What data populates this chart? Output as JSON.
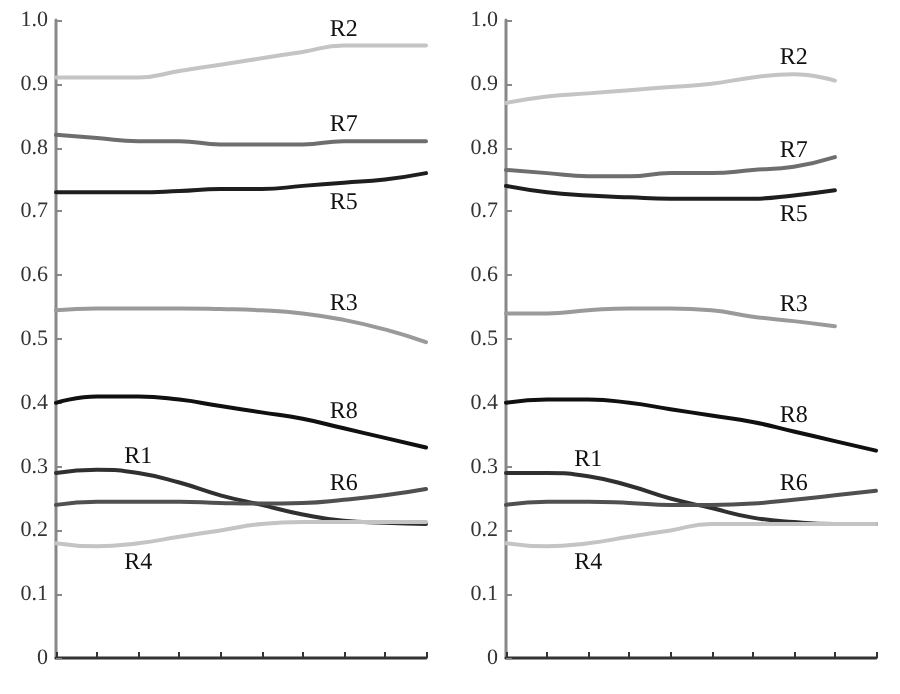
{
  "chart_data": [
    {
      "type": "line",
      "categories": [
        null,
        null,
        null,
        null,
        null,
        null,
        null,
        null,
        null,
        null
      ],
      "ylim": [
        0,
        1
      ],
      "yticks": [
        0,
        0.1,
        0.2,
        0.3,
        0.4,
        0.5,
        0.6,
        0.7,
        0.8,
        0.9,
        {
          "value": 1,
          "label": "1.0"
        }
      ],
      "tick_labels": "y",
      "grid": false,
      "legend": false,
      "marker": "none",
      "series": [
        {
          "name": "R2",
          "color": "#c4c4c4",
          "values": [
            0.91,
            0.91,
            0.91,
            0.92,
            0.93,
            0.94,
            0.95,
            0.96,
            0.96,
            0.96
          ]
        },
        {
          "name": "R7",
          "color": "#6e6e6e",
          "values": [
            0.82,
            0.815,
            0.81,
            0.81,
            0.805,
            0.805,
            0.805,
            0.81,
            0.81,
            0.81
          ]
        },
        {
          "name": "R5",
          "color": "#1e1e1e",
          "values": [
            0.73,
            0.73,
            0.73,
            0.732,
            0.735,
            0.735,
            0.74,
            0.745,
            0.75,
            0.76
          ]
        },
        {
          "name": "R3",
          "color": "#9a9a9a",
          "values": [
            0.545,
            0.548,
            0.548,
            0.548,
            0.547,
            0.545,
            0.54,
            0.53,
            0.515,
            0.495
          ]
        },
        {
          "name": "R8",
          "color": "#101010",
          "values": [
            0.4,
            0.41,
            0.41,
            0.405,
            0.395,
            0.385,
            0.375,
            0.36,
            0.345,
            0.33
          ]
        },
        {
          "name": "R1",
          "color": "#303030",
          "values": [
            0.29,
            0.295,
            0.29,
            0.275,
            0.255,
            0.24,
            0.225,
            0.215,
            0.212,
            0.21
          ]
        },
        {
          "name": "R6",
          "color": "#505050",
          "values": [
            0.24,
            0.245,
            0.245,
            0.245,
            0.243,
            0.242,
            0.243,
            0.248,
            0.255,
            0.265
          ]
        },
        {
          "name": "R4",
          "color": "#c4c4c4",
          "values": [
            0.18,
            0.175,
            0.18,
            0.19,
            0.2,
            0.21,
            0.213,
            0.213,
            0.213,
            0.213
          ]
        }
      ]
    },
    {
      "type": "line",
      "categories": [
        null,
        null,
        null,
        null,
        null,
        null,
        null,
        null,
        null,
        null
      ],
      "ylim": [
        0,
        1
      ],
      "yticks": [
        0,
        0.1,
        0.2,
        0.3,
        0.4,
        0.5,
        0.6,
        0.7,
        0.8,
        0.9,
        {
          "value": 1,
          "label": "1.0"
        }
      ],
      "tick_labels": "y",
      "grid": false,
      "legend": false,
      "marker": "none",
      "series": [
        {
          "name": "R2",
          "color": "#c4c4c4",
          "values": [
            0.87,
            0.88,
            0.885,
            0.89,
            0.895,
            0.9,
            0.91,
            0.915,
            0.905,
            null
          ]
        },
        {
          "name": "R7",
          "color": "#6e6e6e",
          "values": [
            0.765,
            0.76,
            0.755,
            0.755,
            0.76,
            0.76,
            0.765,
            0.77,
            0.785,
            null
          ]
        },
        {
          "name": "R5",
          "color": "#1e1e1e",
          "values": [
            0.74,
            0.73,
            0.725,
            0.722,
            0.72,
            0.72,
            0.72,
            0.725,
            0.733,
            null
          ]
        },
        {
          "name": "R3",
          "color": "#9a9a9a",
          "values": [
            0.54,
            0.54,
            0.545,
            0.548,
            0.548,
            0.545,
            0.535,
            0.528,
            0.52,
            null
          ]
        },
        {
          "name": "R8",
          "color": "#101010",
          "values": [
            0.4,
            0.405,
            0.405,
            0.4,
            0.39,
            0.38,
            0.37,
            0.355,
            0.34,
            0.325
          ]
        },
        {
          "name": "R1",
          "color": "#303030",
          "values": [
            0.29,
            0.29,
            0.285,
            0.27,
            0.25,
            0.235,
            0.22,
            0.213,
            0.21,
            0.21
          ]
        },
        {
          "name": "R6",
          "color": "#505050",
          "values": [
            0.24,
            0.245,
            0.245,
            0.243,
            0.24,
            0.24,
            0.242,
            0.248,
            0.255,
            0.262
          ]
        },
        {
          "name": "R4",
          "color": "#c4c4c4",
          "values": [
            0.18,
            0.175,
            0.18,
            0.19,
            0.2,
            0.21,
            0.21,
            0.21,
            0.21,
            0.21
          ]
        }
      ]
    }
  ]
}
